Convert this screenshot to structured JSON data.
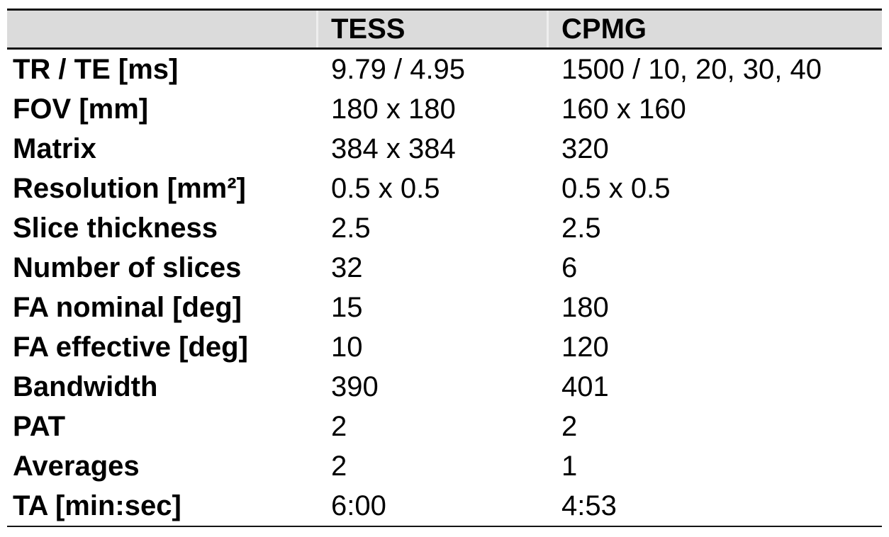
{
  "colors": {
    "header_bg": "#dbdbdb",
    "border": "#141414",
    "text": "#000000"
  },
  "table": {
    "columns": [
      {
        "label": ""
      },
      {
        "label": "TESS"
      },
      {
        "label": "CPMG"
      }
    ],
    "rows": [
      {
        "label": "TR / TE [ms]",
        "tess": "9.79 / 4.95",
        "cpmg": "1500 / 10, 20, 30, 40"
      },
      {
        "label": "FOV [mm]",
        "tess": "180 x 180",
        "cpmg": "160 x 160"
      },
      {
        "label": "Matrix",
        "tess": "384 x 384",
        "cpmg": "320"
      },
      {
        "label": "Resolution [mm²]",
        "tess": "0.5 x 0.5",
        "cpmg": "0.5 x 0.5"
      },
      {
        "label": "Slice thickness",
        "tess": "2.5",
        "cpmg": "2.5"
      },
      {
        "label": "Number of slices",
        "tess": "32",
        "cpmg": "6"
      },
      {
        "label": "FA nominal [deg]",
        "tess": "15",
        "cpmg": "180"
      },
      {
        "label": "FA effective [deg]",
        "tess": "10",
        "cpmg": "120"
      },
      {
        "label": "Bandwidth",
        "tess": "390",
        "cpmg": "401"
      },
      {
        "label": "PAT",
        "tess": "2",
        "cpmg": "2"
      },
      {
        "label": "Averages",
        "tess": "2",
        "cpmg": "1"
      },
      {
        "label": "TA [min:sec]",
        "tess": "6:00",
        "cpmg": "4:53"
      }
    ]
  }
}
